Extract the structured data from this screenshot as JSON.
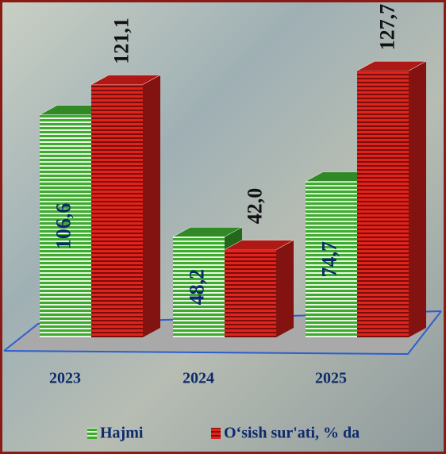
{
  "chart_data": {
    "type": "bar3d",
    "categories": [
      "2023",
      "2024",
      "2025"
    ],
    "series": [
      {
        "name": "Hajmi",
        "color": "#3cab2e",
        "values": [
          106.6,
          48.2,
          74.7
        ],
        "value_labels": [
          "106,6",
          "48,2",
          "74,7"
        ]
      },
      {
        "name": "O‘sish sur'ati, % da",
        "color": "#d91f1a",
        "values": [
          121.1,
          42.0,
          127.7
        ],
        "value_labels": [
          "121,1",
          "42,0",
          "127,7"
        ]
      }
    ]
  }
}
